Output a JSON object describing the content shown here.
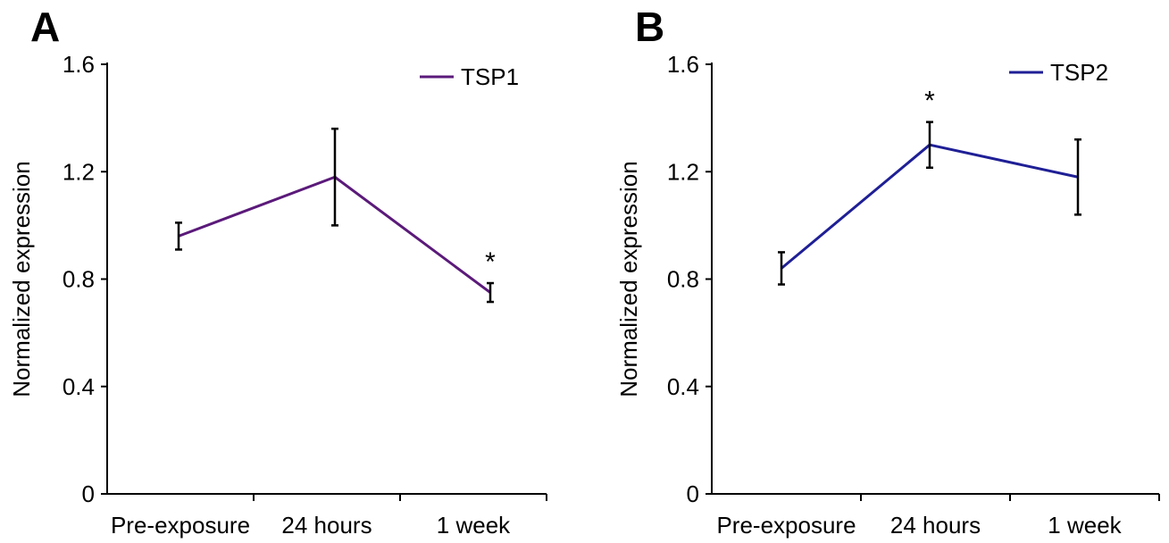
{
  "chart_data": [
    {
      "panel": "A",
      "type": "line",
      "categories": [
        "Pre-exposure",
        "24 hours",
        "1 week"
      ],
      "series": [
        {
          "name": "TSP1",
          "color": "#5b1a7a",
          "values": [
            0.96,
            1.18,
            0.75
          ],
          "error": [
            0.05,
            0.18,
            0.035
          ]
        }
      ],
      "significance": [
        "",
        "",
        "*"
      ],
      "xlabel": "",
      "ylabel": "Normalized expression",
      "ylim": [
        0,
        1.6
      ],
      "yticks": [
        "0",
        "0.4",
        "0.8",
        "1.2",
        "1.6"
      ],
      "grid": false,
      "legend_position": "top-right"
    },
    {
      "panel": "B",
      "type": "line",
      "categories": [
        "Pre-exposure",
        "24 hours",
        "1 week"
      ],
      "series": [
        {
          "name": "TSP2",
          "color": "#1f1f96",
          "values": [
            0.84,
            1.3,
            1.18
          ],
          "error": [
            0.06,
            0.085,
            0.14
          ]
        }
      ],
      "significance": [
        "",
        "*",
        ""
      ],
      "xlabel": "",
      "ylabel": "Normalized expression",
      "ylim": [
        0,
        1.6
      ],
      "yticks": [
        "0",
        "0.4",
        "0.8",
        "1.2",
        "1.6"
      ],
      "grid": false,
      "legend_position": "top-right"
    }
  ]
}
